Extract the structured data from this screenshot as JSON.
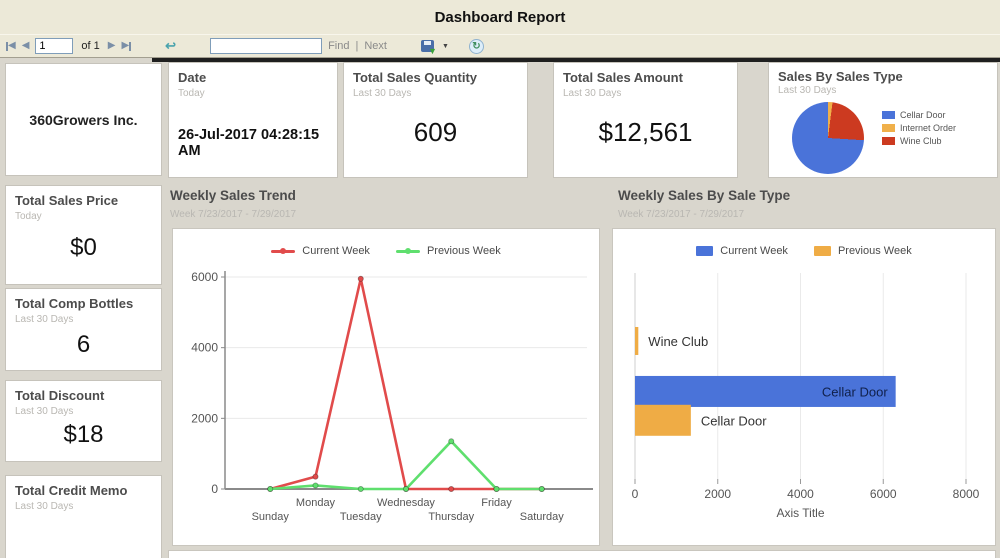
{
  "title_bar": {
    "title": "Dashboard Report"
  },
  "toolbar": {
    "page_value": "1",
    "of_label": "of 1",
    "find_label": "Find",
    "separator": "|",
    "next_label": "Next"
  },
  "sidebar": {
    "cards": [
      {
        "title": "360Growers Inc."
      },
      {
        "title": "Total Sales Price",
        "subtitle": "Today",
        "value": "$0"
      },
      {
        "title": "Total Comp Bottles",
        "subtitle": "Last 30 Days",
        "value": "6"
      },
      {
        "title": "Total Discount",
        "subtitle": "Last 30 Days",
        "value": "$18"
      },
      {
        "title": "Total Credit Memo",
        "subtitle": "Last 30 Days",
        "value": ""
      }
    ]
  },
  "kpi_row": {
    "date_card": {
      "title": "Date",
      "subtitle": "Today",
      "value": "26-Jul-2017 04:28:15 AM"
    },
    "quantity_card": {
      "title": "Total Sales Quantity",
      "subtitle": "Last 30 Days",
      "value": "609"
    },
    "amount_card": {
      "title": "Total Sales Amount",
      "subtitle": "Last 30 Days",
      "value": "$12,561"
    },
    "pie_card": {
      "title": "Sales By Sales Type",
      "subtitle": "Last 30 Days"
    }
  },
  "sections": {
    "trend": {
      "title": "Weekly Sales Trend",
      "subtitle": "Week 7/23/2017 - 7/29/2017"
    },
    "by_type": {
      "title": "Weekly Sales By Sale Type",
      "subtitle": "Week 7/23/2017 - 7/29/2017"
    }
  },
  "chart_data": [
    {
      "id": "sales-by-sales-type",
      "type": "pie",
      "title": "Sales By Sales Type",
      "slices": [
        {
          "label": "Cellar Door",
          "percent": 74,
          "color": "#4a73d9"
        },
        {
          "label": "Internet Order",
          "percent": 2,
          "color": "#f0b04a"
        },
        {
          "label": "Wine Club",
          "percent": 24,
          "color": "#cc3a20"
        }
      ],
      "draw_order_clockwise_from_top": [
        "Internet Order",
        "Wine Club",
        "Cellar Door"
      ],
      "legend_position": "right"
    },
    {
      "id": "weekly-sales-trend",
      "type": "line",
      "title": "Weekly Sales Trend",
      "categories": [
        "Sunday",
        "Monday",
        "Tuesday",
        "Wednesday",
        "Thursday",
        "Friday",
        "Saturday"
      ],
      "series": [
        {
          "name": "Current Week",
          "color": "#e14b4b",
          "values": [
            0,
            350,
            5950,
            0,
            0,
            0,
            0
          ]
        },
        {
          "name": "Previous Week",
          "color": "#5fdf6e",
          "values": [
            0,
            100,
            0,
            0,
            1350,
            0,
            0
          ]
        }
      ],
      "ylim": [
        0,
        6000
      ],
      "yticks": [
        0,
        2000,
        4000,
        6000
      ],
      "grid": true,
      "legend_position": "top"
    },
    {
      "id": "weekly-sales-by-sale-type",
      "type": "bar-horizontal",
      "title": "Weekly Sales By Sale Type",
      "xlabel": "Axis Title",
      "xlim": [
        0,
        8000
      ],
      "xticks": [
        0,
        2000,
        4000,
        6000,
        8000
      ],
      "grid": true,
      "legend_position": "top",
      "legend": [
        {
          "name": "Current Week",
          "color": "#4a73d9"
        },
        {
          "name": "Previous Week",
          "color": "#efac45"
        }
      ],
      "bars": [
        {
          "label": "Wine Club",
          "series": "Previous Week",
          "value": 80,
          "color": "#efac45",
          "y_frac": 0.33,
          "thickness": 28,
          "label_inside": false
        },
        {
          "label": "Cellar Door",
          "series": "Current Week",
          "value": 6300,
          "color": "#4a73d9",
          "y_frac": 0.575,
          "thickness": 31,
          "label_inside": true
        },
        {
          "label": "Cellar Door",
          "series": "Previous Week",
          "value": 1350,
          "color": "#efac45",
          "y_frac": 0.715,
          "thickness": 31,
          "label_inside": false
        }
      ]
    }
  ]
}
